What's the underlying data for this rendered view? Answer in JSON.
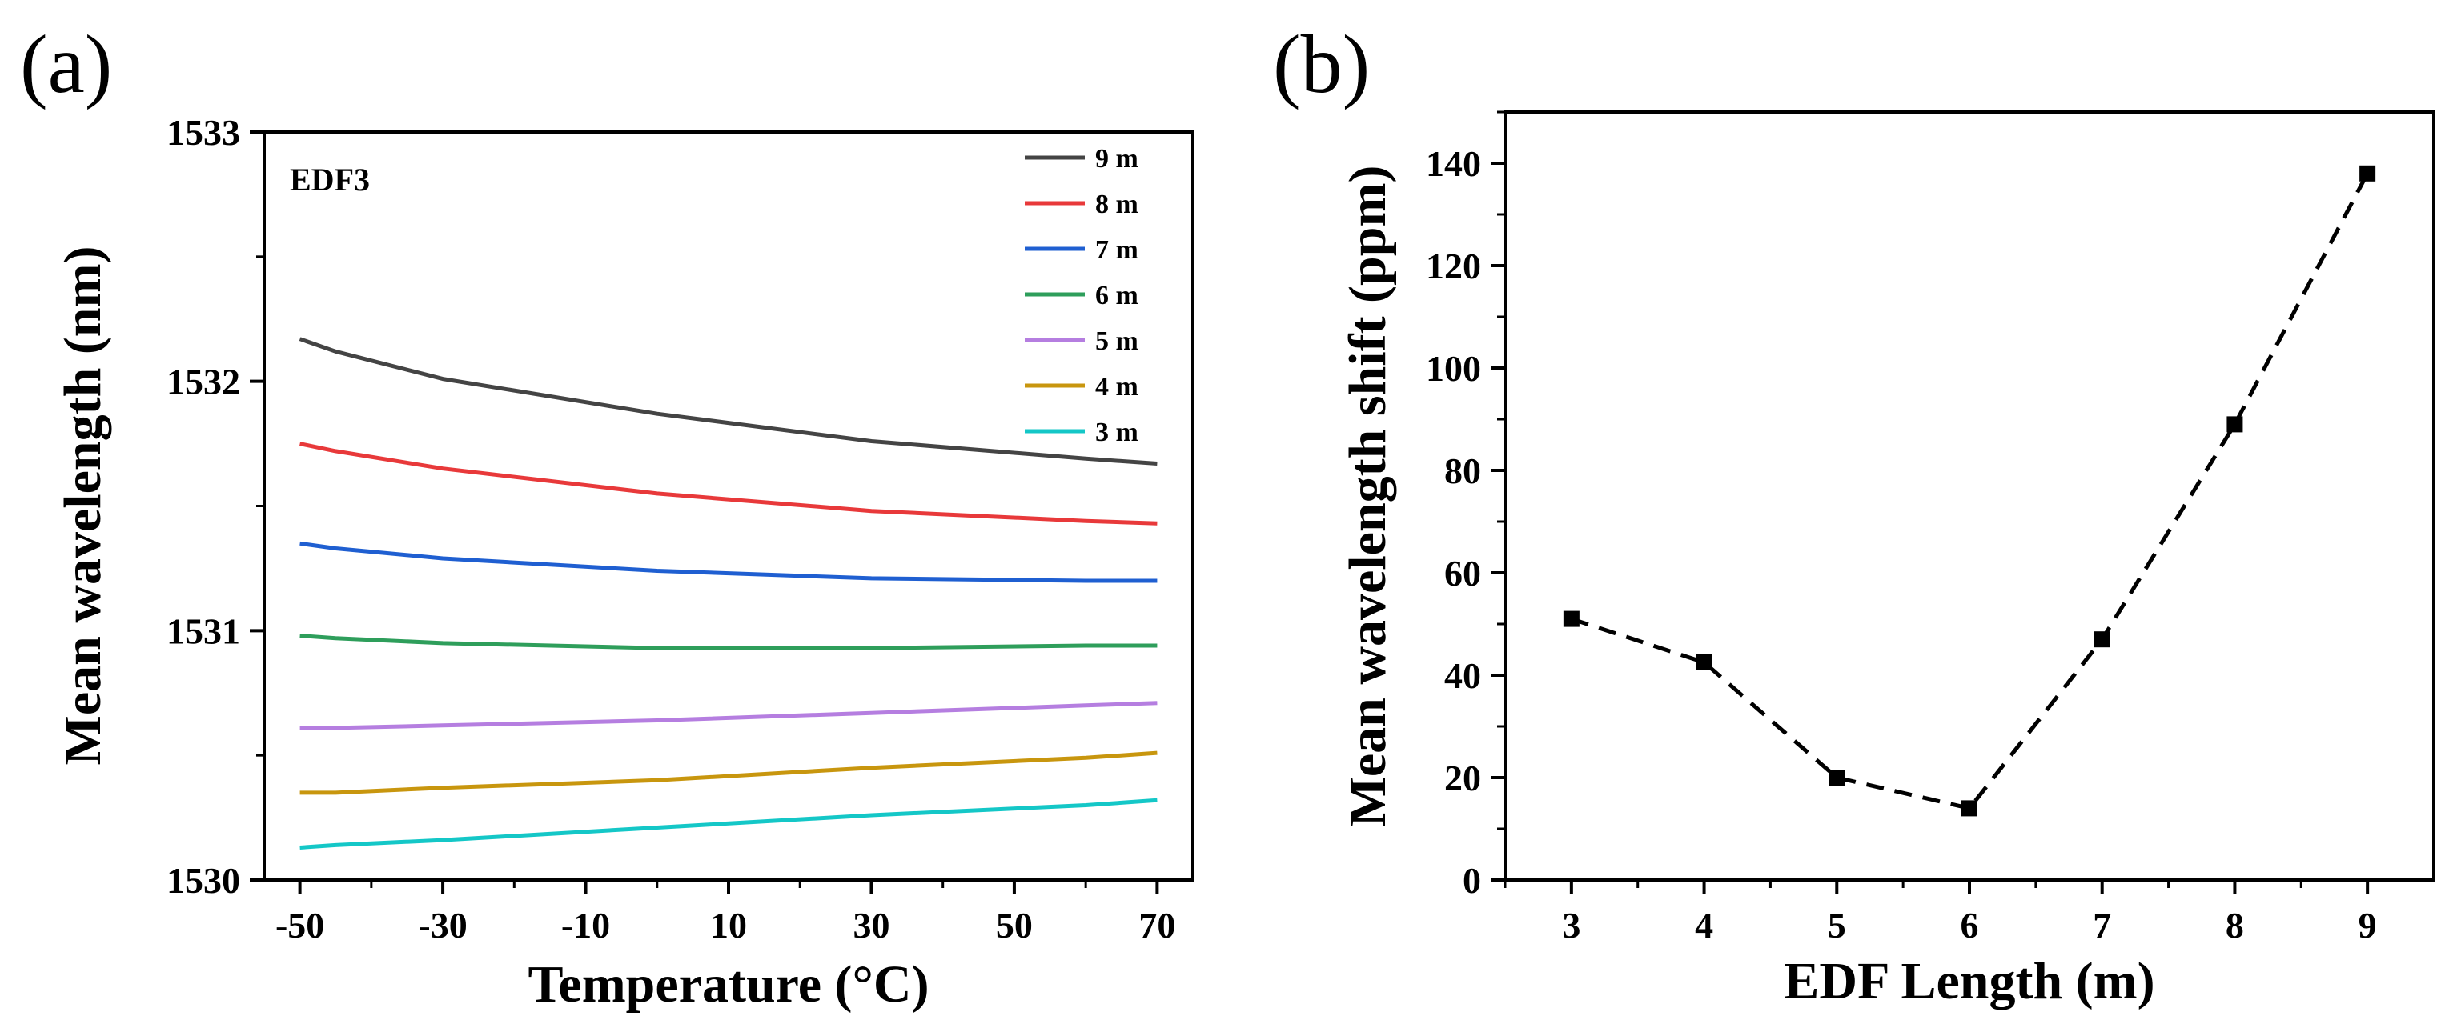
{
  "chart_data": [
    {
      "panel_label": "(a)",
      "type": "line",
      "xlabel": "Temperature (°C)",
      "ylabel": "Mean wavelength (nm)",
      "annotation": "EDF3",
      "xlim": [
        -55,
        75
      ],
      "ylim": [
        1530,
        1533
      ],
      "xticks": [
        -50,
        -30,
        -10,
        10,
        30,
        50,
        70
      ],
      "xtick_labels": [
        "-50",
        "-30",
        "-10",
        "10",
        "30",
        "50",
        "70"
      ],
      "yticks": [
        1530,
        1531,
        1532,
        1533
      ],
      "ytick_labels": [
        "1530",
        "1531",
        "1532",
        "1533"
      ],
      "legend_position": "top-right",
      "x": [
        -50,
        -45,
        -30,
        0,
        30,
        60,
        70
      ],
      "series": [
        {
          "name": "9 m",
          "color": "#444444",
          "values": [
            1532.17,
            1532.12,
            1532.01,
            1531.87,
            1531.76,
            1531.69,
            1531.67
          ]
        },
        {
          "name": "8 m",
          "color": "#e8393a",
          "values": [
            1531.75,
            1531.72,
            1531.65,
            1531.55,
            1531.48,
            1531.44,
            1531.43
          ]
        },
        {
          "name": "7 m",
          "color": "#1f5fd1",
          "values": [
            1531.35,
            1531.33,
            1531.29,
            1531.24,
            1531.21,
            1531.2,
            1531.2
          ]
        },
        {
          "name": "6 m",
          "color": "#2e9e5b",
          "values": [
            1530.98,
            1530.97,
            1530.95,
            1530.93,
            1530.93,
            1530.94,
            1530.94
          ]
        },
        {
          "name": "5 m",
          "color": "#b57ee0",
          "values": [
            1530.61,
            1530.61,
            1530.62,
            1530.64,
            1530.67,
            1530.7,
            1530.71
          ]
        },
        {
          "name": "4 m",
          "color": "#c8960e",
          "values": [
            1530.35,
            1530.35,
            1530.37,
            1530.4,
            1530.45,
            1530.49,
            1530.51
          ]
        },
        {
          "name": "3 m",
          "color": "#14c7c7",
          "values": [
            1530.13,
            1530.14,
            1530.16,
            1530.21,
            1530.26,
            1530.3,
            1530.32
          ]
        }
      ]
    },
    {
      "panel_label": "(b)",
      "type": "line",
      "xlabel": "EDF Length (m)",
      "ylabel": "Mean wavelength shift (ppm)",
      "xlim": [
        2.5,
        9.5
      ],
      "ylim": [
        0,
        150
      ],
      "xticks": [
        3,
        4,
        5,
        6,
        7,
        8,
        9
      ],
      "xtick_labels": [
        "3",
        "4",
        "5",
        "6",
        "7",
        "8",
        "9"
      ],
      "yticks": [
        0,
        20,
        40,
        60,
        80,
        100,
        120,
        140
      ],
      "ytick_labels": [
        "0",
        "20",
        "40",
        "60",
        "80",
        "100",
        "120",
        "140"
      ],
      "line_style": "dashed",
      "marker": "square",
      "series": [
        {
          "name": "shift",
          "color": "#000000",
          "x": [
            3,
            4,
            5,
            6,
            7,
            8,
            9
          ],
          "values": [
            51,
            42.5,
            20,
            14,
            47,
            89,
            138
          ]
        }
      ]
    }
  ]
}
